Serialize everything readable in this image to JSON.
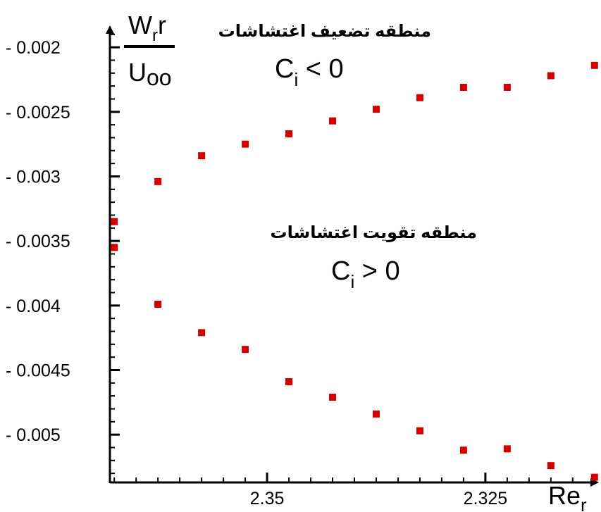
{
  "chart_data": {
    "type": "scatter",
    "x_reversed": true,
    "xlim": [
      2.368,
      2.312
    ],
    "ylim": [
      -0.00537,
      -0.00183
    ],
    "x_tick_labels": [
      {
        "value": 2.35,
        "label": "2.35"
      },
      {
        "value": 2.325,
        "label": "2.325"
      }
    ],
    "y_tick_labels": [
      {
        "value": -0.002,
        "label": "- 0.002"
      },
      {
        "value": -0.0025,
        "label": "- 0.0025"
      },
      {
        "value": -0.003,
        "label": "- 0.003"
      },
      {
        "value": -0.0035,
        "label": "- 0.0035"
      },
      {
        "value": -0.004,
        "label": "- 0.004"
      },
      {
        "value": -0.0045,
        "label": "- 0.0045"
      },
      {
        "value": -0.005,
        "label": "- 0.005"
      }
    ],
    "xlabel": {
      "main": "Re",
      "sub": "r"
    },
    "ylabel": {
      "num_main": "W",
      "num_sub": "r",
      "num_tail": "r",
      "den": "U",
      "den_sub": "oo"
    },
    "annotations": {
      "upper_text": "منطقه تضعیف اغتشاشات",
      "upper_cond": {
        "main": "C",
        "sub": "i",
        "rest": " < 0"
      },
      "lower_text": "منطقه تقویت اغتشاشات",
      "lower_cond": {
        "main": "C",
        "sub": "i",
        "rest": " > 0"
      }
    },
    "marker_color": "#d40000",
    "axis_color": "#000000",
    "series": [
      {
        "points": [
          [
            2.3675,
            -0.00335
          ],
          [
            2.3675,
            -0.00355
          ],
          [
            2.3625,
            -0.00304
          ],
          [
            2.3625,
            -0.00399
          ],
          [
            2.3575,
            -0.00284
          ],
          [
            2.3575,
            -0.00421
          ],
          [
            2.3525,
            -0.00275
          ],
          [
            2.3525,
            -0.00434
          ],
          [
            2.3475,
            -0.00267
          ],
          [
            2.3475,
            -0.00459
          ],
          [
            2.3425,
            -0.00257
          ],
          [
            2.3425,
            -0.00471
          ],
          [
            2.3375,
            -0.00248
          ],
          [
            2.3375,
            -0.00484
          ],
          [
            2.3325,
            -0.00239
          ],
          [
            2.3325,
            -0.00497
          ],
          [
            2.3275,
            -0.00231
          ],
          [
            2.3275,
            -0.00512
          ],
          [
            2.3225,
            -0.00231
          ],
          [
            2.3225,
            -0.00511
          ],
          [
            2.3175,
            -0.00222
          ],
          [
            2.3175,
            -0.00524
          ],
          [
            2.3125,
            -0.00214
          ],
          [
            2.3125,
            -0.00533
          ]
        ]
      }
    ]
  }
}
